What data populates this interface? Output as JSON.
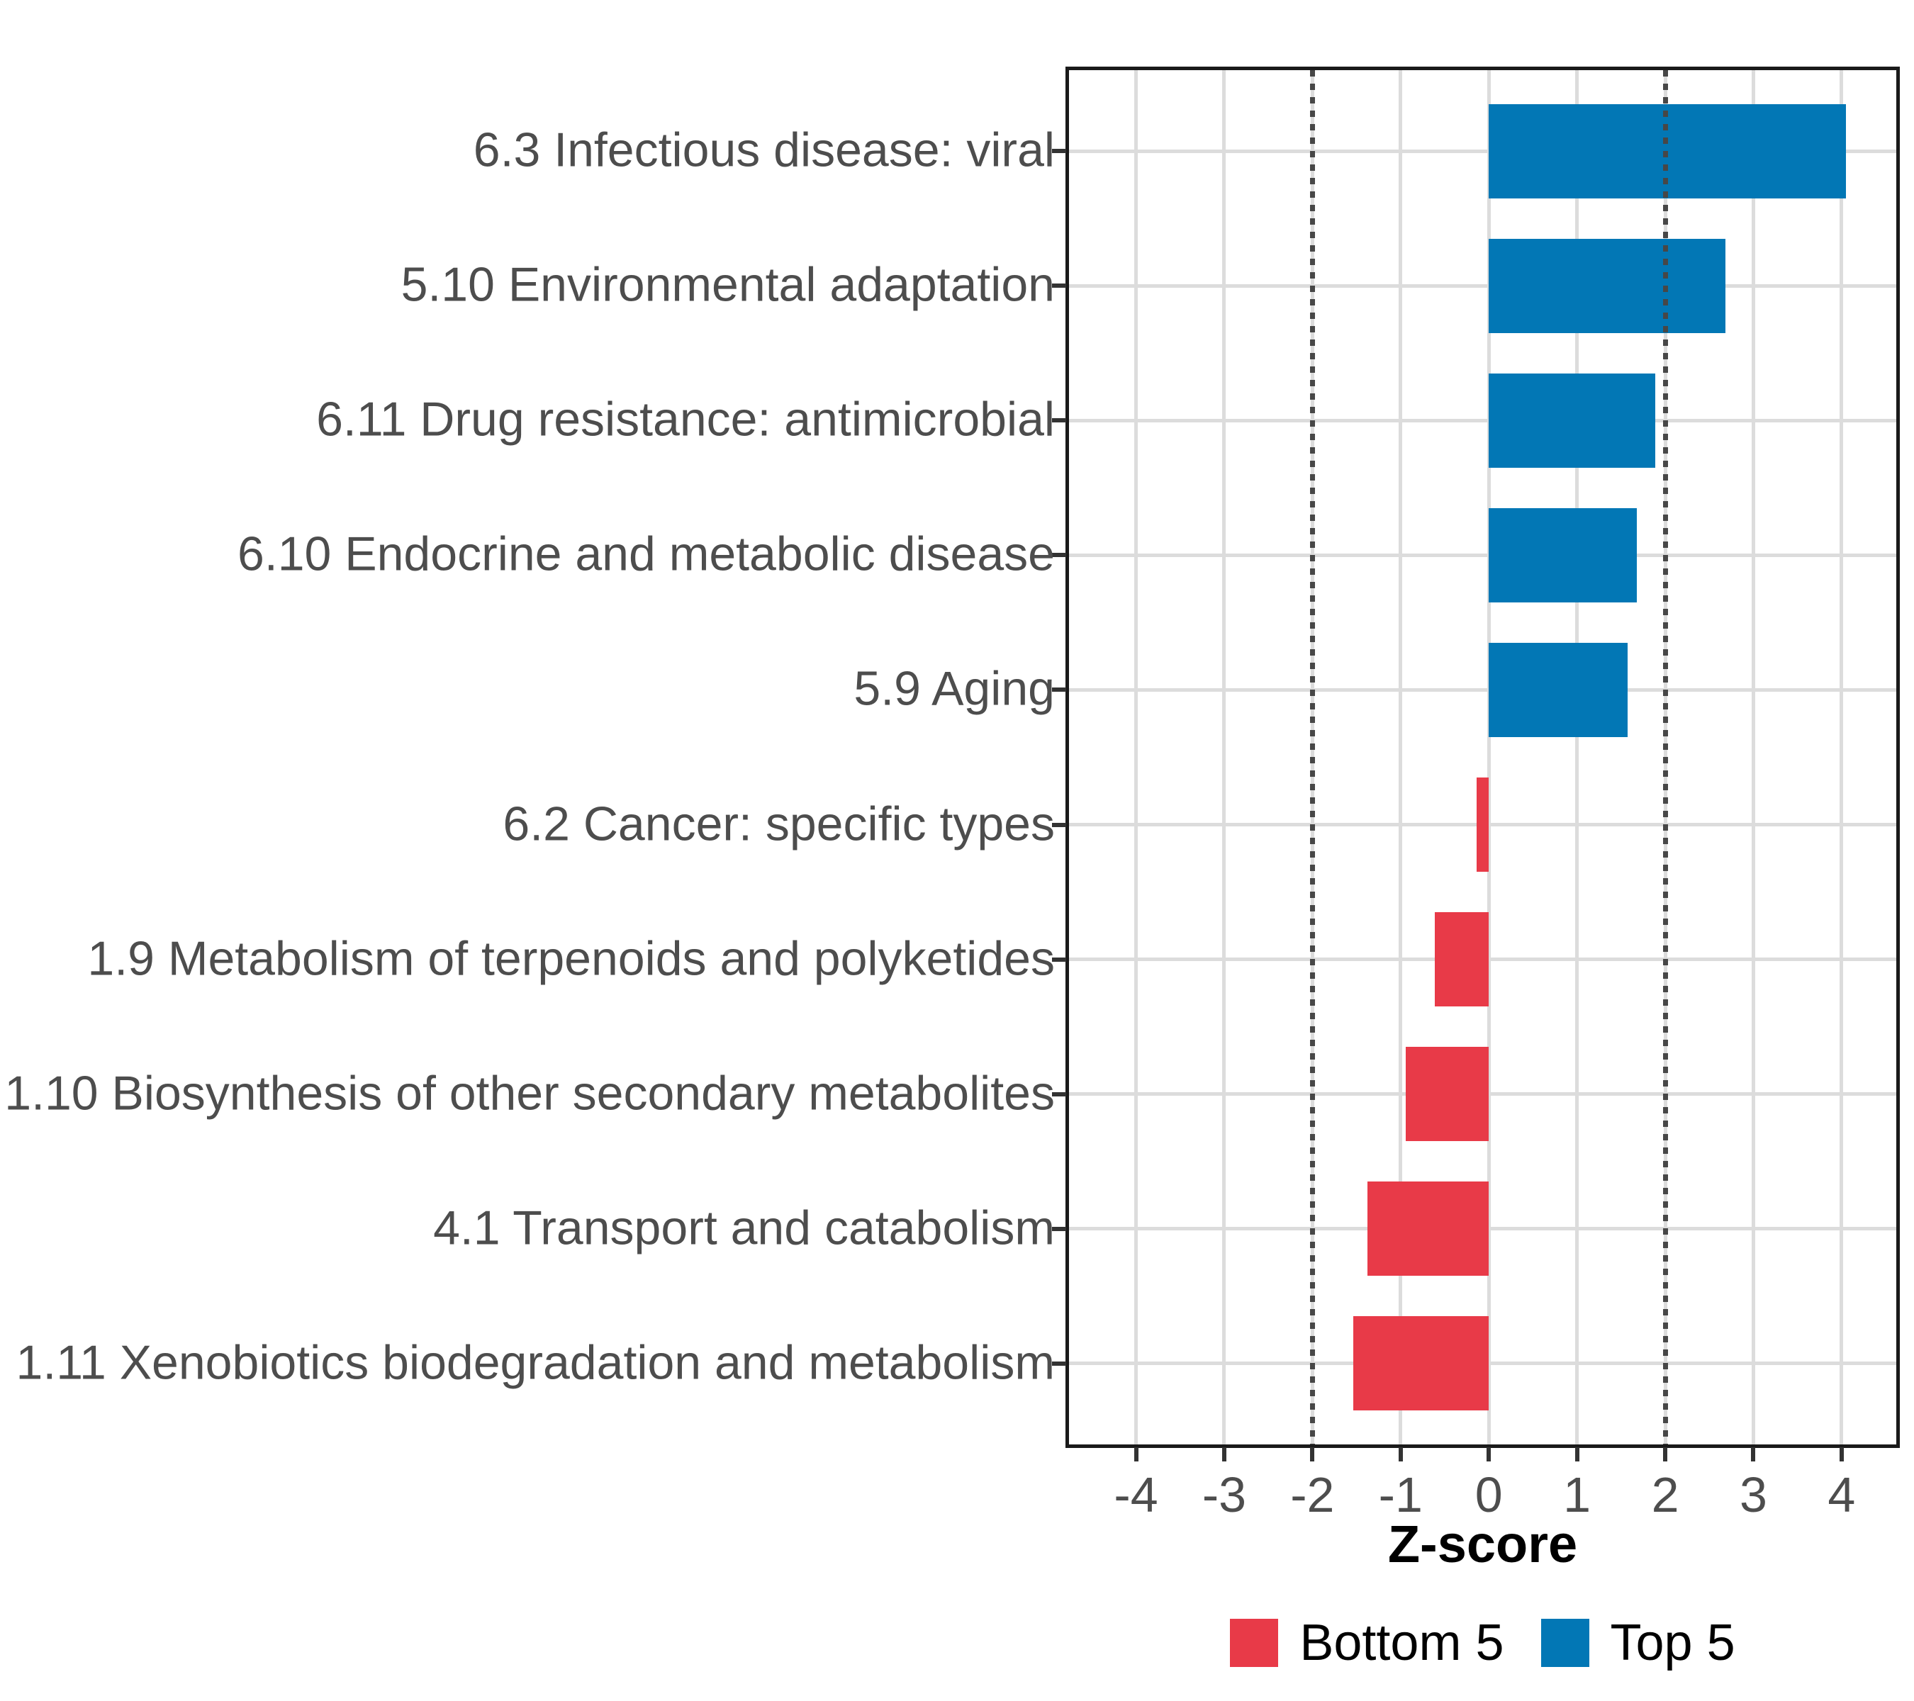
{
  "chart_data": {
    "type": "bar",
    "orientation": "horizontal",
    "title": "",
    "xlabel": "Z-score",
    "categories": [
      "6.3 Infectious disease: viral",
      "5.10 Environmental adaptation",
      "6.11 Drug resistance: antimicrobial",
      "6.10 Endocrine and metabolic disease",
      "5.9 Aging",
      "6.2 Cancer: specific types",
      "1.9 Metabolism of terpenoids and polyketides",
      "1.10 Biosynthesis of other secondary metabolites",
      "4.1 Transport and catabolism",
      "1.11 Xenobiotics biodegradation and metabolism"
    ],
    "values": [
      4.05,
      2.68,
      1.89,
      1.68,
      1.57,
      -0.14,
      -0.61,
      -0.94,
      -1.38,
      -1.54
    ],
    "groups": [
      "Top 5",
      "Top 5",
      "Top 5",
      "Top 5",
      "Top 5",
      "Bottom 5",
      "Bottom 5",
      "Bottom 5",
      "Bottom 5",
      "Bottom 5"
    ],
    "x_ticks": [
      -4,
      -3,
      -2,
      -1,
      0,
      1,
      2,
      3,
      4
    ],
    "xlim": [
      -4.76,
      4.62
    ],
    "reference_lines": [
      -2,
      2
    ],
    "grid": "major-x-and-category-y",
    "bar_width_fraction": 0.7,
    "legend": {
      "position": "bottom",
      "entries": [
        {
          "label": "Bottom 5",
          "color": "#E83A48"
        },
        {
          "label": "Top 5",
          "color": "#0277B5"
        }
      ]
    },
    "colors": {
      "top5": "#0277B5",
      "bottom5": "#E83A48",
      "grid": "#DCDCDC",
      "reference_line": "#474747",
      "axis_text": "#4D4D4D",
      "panel_border": "#1A1A1A",
      "tick_mark": "#333333"
    }
  }
}
